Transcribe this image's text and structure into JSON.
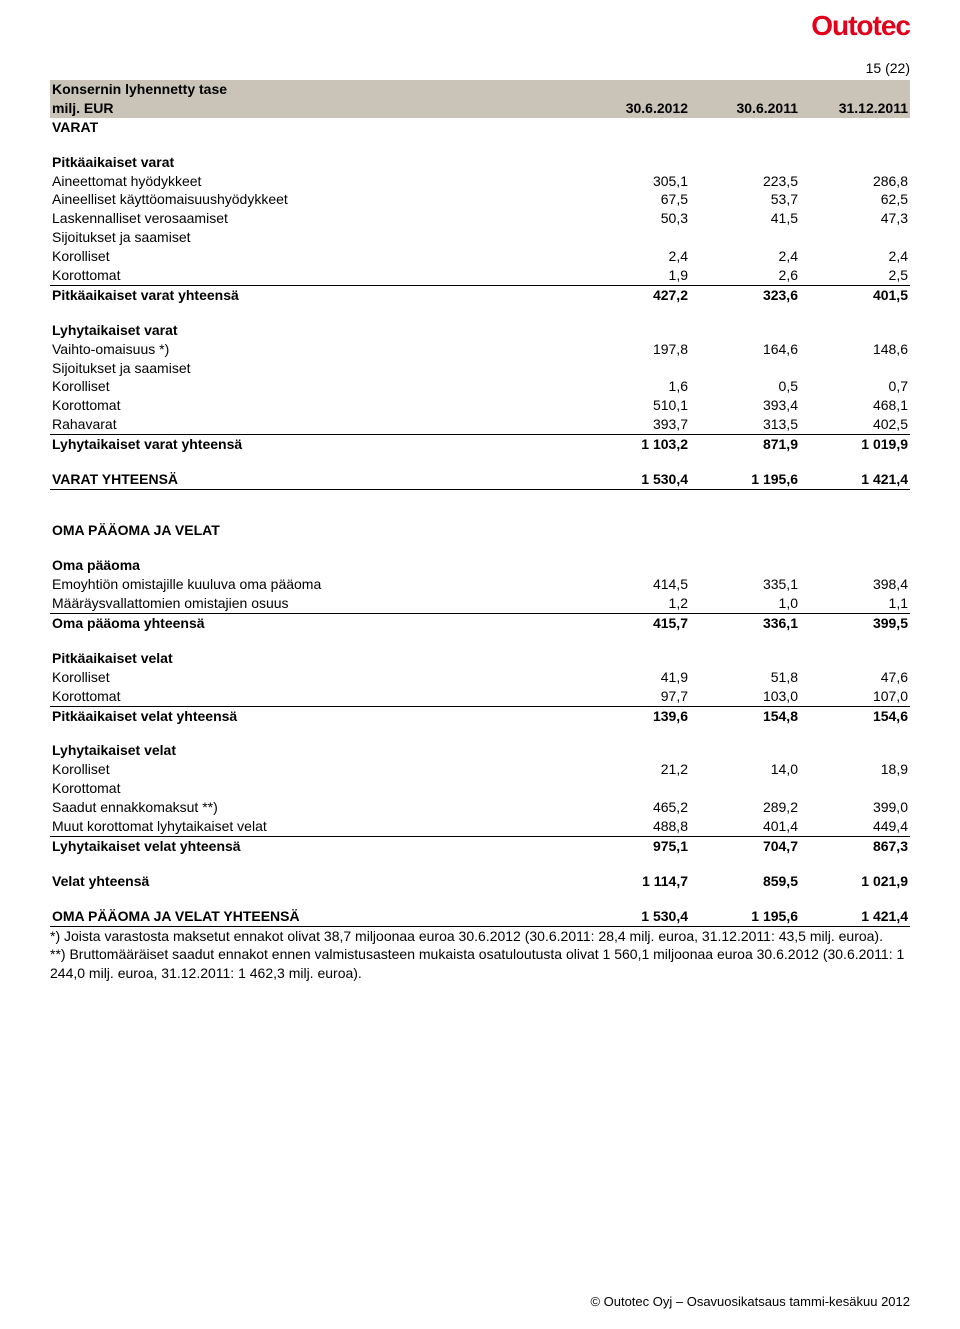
{
  "logo": "Outotec",
  "page_num": "15 (22)",
  "header": {
    "title": "Konsernin lyhennetty tase",
    "sub": "milj. EUR",
    "col1": "30.6.2012",
    "col2": "30.6.2011",
    "col3": "31.12.2011"
  },
  "varat_title": "VARAT",
  "s1": {
    "title": "Pitkäaikaiset varat",
    "r1": {
      "l": "Aineettomat hyödykkeet",
      "c1": "305,1",
      "c2": "223,5",
      "c3": "286,8"
    },
    "r2": {
      "l": "Aineelliset käyttöomaisuushyödykkeet",
      "c1": "67,5",
      "c2": "53,7",
      "c3": "62,5"
    },
    "r3": {
      "l": "Laskennalliset verosaamiset",
      "c1": "50,3",
      "c2": "41,5",
      "c3": "47,3"
    },
    "r4": {
      "l": "Sijoitukset ja saamiset"
    },
    "r5": {
      "l": "Korolliset",
      "c1": "2,4",
      "c2": "2,4",
      "c3": "2,4"
    },
    "r6": {
      "l": "Korottomat",
      "c1": "1,9",
      "c2": "2,6",
      "c3": "2,5"
    },
    "r7": {
      "l": "Pitkäaikaiset varat yhteensä",
      "c1": "427,2",
      "c2": "323,6",
      "c3": "401,5"
    }
  },
  "s2": {
    "title": "Lyhytaikaiset varat",
    "r1": {
      "l": "Vaihto-omaisuus *)",
      "c1": "197,8",
      "c2": "164,6",
      "c3": "148,6"
    },
    "r2": {
      "l": "Sijoitukset ja saamiset"
    },
    "r3": {
      "l": "Korolliset",
      "c1": "1,6",
      "c2": "0,5",
      "c3": "0,7"
    },
    "r4": {
      "l": "Korottomat",
      "c1": "510,1",
      "c2": "393,4",
      "c3": "468,1"
    },
    "r5": {
      "l": "Rahavarat",
      "c1": "393,7",
      "c2": "313,5",
      "c3": "402,5"
    },
    "r6": {
      "l": "Lyhytaikaiset varat yhteensä",
      "c1": "1 103,2",
      "c2": "871,9",
      "c3": "1 019,9"
    }
  },
  "varat_tot": {
    "l": "VARAT YHTEENSÄ",
    "c1": "1 530,4",
    "c2": "1 195,6",
    "c3": "1 421,4"
  },
  "opv_title": "OMA PÄÄOMA JA VELAT",
  "s3": {
    "title": "Oma pääoma",
    "r1": {
      "l": "Emoyhtiön omistajille kuuluva oma pääoma",
      "c1": "414,5",
      "c2": "335,1",
      "c3": "398,4"
    },
    "r2": {
      "l": "Määräysvallattomien omistajien osuus",
      "c1": "1,2",
      "c2": "1,0",
      "c3": "1,1"
    },
    "r3": {
      "l": "Oma pääoma yhteensä",
      "c1": "415,7",
      "c2": "336,1",
      "c3": "399,5"
    }
  },
  "s4": {
    "title": "Pitkäaikaiset velat",
    "r1": {
      "l": "Korolliset",
      "c1": "41,9",
      "c2": "51,8",
      "c3": "47,6"
    },
    "r2": {
      "l": "Korottomat",
      "c1": "97,7",
      "c2": "103,0",
      "c3": "107,0"
    },
    "r3": {
      "l": "Pitkäaikaiset velat yhteensä",
      "c1": "139,6",
      "c2": "154,8",
      "c3": "154,6"
    }
  },
  "s5": {
    "title": "Lyhytaikaiset velat",
    "r1": {
      "l": "Korolliset",
      "c1": "21,2",
      "c2": "14,0",
      "c3": "18,9"
    },
    "r2": {
      "l": "Korottomat"
    },
    "r3": {
      "l": "Saadut ennakkomaksut **)",
      "c1": "465,2",
      "c2": "289,2",
      "c3": "399,0"
    },
    "r4": {
      "l": "Muut korottomat lyhytaikaiset velat",
      "c1": "488,8",
      "c2": "401,4",
      "c3": "449,4"
    },
    "r5": {
      "l": "Lyhytaikaiset velat yhteensä",
      "c1": "975,1",
      "c2": "704,7",
      "c3": "867,3"
    }
  },
  "velat_tot": {
    "l": "Velat yhteensä",
    "c1": "1 114,7",
    "c2": "859,5",
    "c3": "1 021,9"
  },
  "opv_tot": {
    "l": "OMA PÄÄOMA JA VELAT YHTEENSÄ",
    "c1": "1 530,4",
    "c2": "1 195,6",
    "c3": "1 421,4"
  },
  "footnote1": "*) Joista varastosta maksetut ennakot olivat 38,7 miljoonaa euroa 30.6.2012 (30.6.2011: 28,4 milj. euroa, 31.12.2011: 43,5 milj. euroa).",
  "footnote2": "**) Bruttomääräiset saadut ennakot ennen valmistusasteen mukaista osatuloutusta olivat 1 560,1 miljoonaa euroa 30.6.2012 (30.6.2011: 1 244,0 milj. euroa, 31.12.2011: 1 462,3 milj. euroa).",
  "footer": "© Outotec Oyj – Osavuosikatsaus tammi-kesäkuu 2012"
}
